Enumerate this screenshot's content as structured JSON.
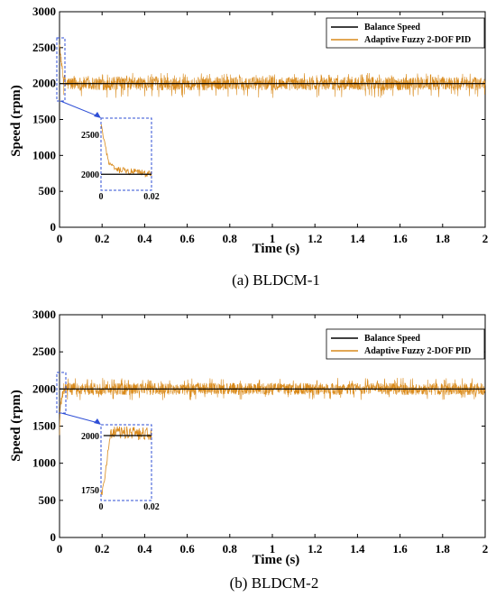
{
  "chart_data": [
    {
      "type": "line",
      "caption": "(a) BLDCM-1",
      "xlabel": "Time (s)",
      "ylabel": "Speed (rpm)",
      "xlim": [
        0,
        2
      ],
      "ylim": [
        0,
        3000
      ],
      "xticks": [
        "0",
        "0.2",
        "0.4",
        "0.6",
        "0.8",
        "1",
        "1.2",
        "1.4",
        "1.6",
        "1.8",
        "2"
      ],
      "yticks": [
        "0",
        "500",
        "1000",
        "1500",
        "2000",
        "2500",
        "3000"
      ],
      "legend": {
        "placement": "top-right",
        "entries": [
          "Balance Speed",
          "Adaptive Fuzzy 2-DOF PID"
        ]
      },
      "series": [
        {
          "name": "Balance Speed",
          "color": "#000000",
          "x": [
            0,
            2
          ],
          "y": [
            2000,
            2000
          ]
        },
        {
          "name": "Adaptive Fuzzy 2-DOF PID",
          "color": "#D98A1B",
          "x": [
            0,
            0.003,
            0.02,
            2
          ],
          "y": [
            2600,
            2450,
            2000,
            2000
          ],
          "noise_band": [
            1800,
            2150
          ]
        }
      ],
      "inset": {
        "xlim": [
          0,
          0.02
        ],
        "ylim": [
          1800,
          2700
        ],
        "xticks": [
          "0",
          "0.02"
        ],
        "yticks": [
          "2000",
          "2500"
        ],
        "zoom_region": {
          "x": [
            0,
            0.02
          ],
          "y": [
            1750,
            2620
          ]
        },
        "series": [
          {
            "name": "Balance Speed",
            "x": [
              0,
              0.02
            ],
            "y": [
              2000,
              2000
            ]
          },
          {
            "name": "Adaptive Fuzzy 2-DOF PID",
            "x": [
              0,
              0.001,
              0.003,
              0.006,
              0.02
            ],
            "y": [
              2620,
              2450,
              2150,
              2050,
              2000
            ]
          }
        ]
      }
    },
    {
      "type": "line",
      "caption": "(b) BLDCM-2",
      "xlabel": "Time (s)",
      "ylabel": "Speed (rpm)",
      "xlim": [
        0,
        2
      ],
      "ylim": [
        0,
        3000
      ],
      "xticks": [
        "0",
        "0.2",
        "0.4",
        "0.6",
        "0.8",
        "1",
        "1.2",
        "1.4",
        "1.6",
        "1.8",
        "2"
      ],
      "yticks": [
        "0",
        "500",
        "1000",
        "1500",
        "2000",
        "2500",
        "3000"
      ],
      "legend": {
        "placement": "top-right",
        "entries": [
          "Balance Speed",
          "Adaptive Fuzzy 2-DOF PID"
        ]
      },
      "series": [
        {
          "name": "Balance Speed",
          "color": "#000000",
          "x": [
            0,
            2
          ],
          "y": [
            2000,
            2000
          ]
        },
        {
          "name": "Adaptive Fuzzy 2-DOF PID",
          "color": "#D98A1B",
          "x": [
            0,
            0.003,
            0.02,
            2
          ],
          "y": [
            1400,
            1750,
            2000,
            2000
          ],
          "noise_band": [
            1850,
            2150
          ]
        }
      ],
      "inset": {
        "xlim": [
          0,
          0.02
        ],
        "ylim": [
          1700,
          2050
        ],
        "xticks": [
          "0",
          "0.02"
        ],
        "yticks": [
          "1750",
          "2000"
        ],
        "zoom_region": {
          "x": [
            0,
            0.02
          ],
          "y": [
            1700,
            2250
          ]
        },
        "series": [
          {
            "name": "Balance Speed",
            "x": [
              0.001,
              0.02
            ],
            "y": [
              2000,
              2000
            ]
          },
          {
            "name": "Adaptive Fuzzy 2-DOF PID",
            "x": [
              0,
              0.001,
              0.002,
              0.003,
              0.004,
              0.02
            ],
            "y": [
              1720,
              1760,
              1850,
              1950,
              2010,
              2000
            ]
          }
        ]
      }
    }
  ]
}
